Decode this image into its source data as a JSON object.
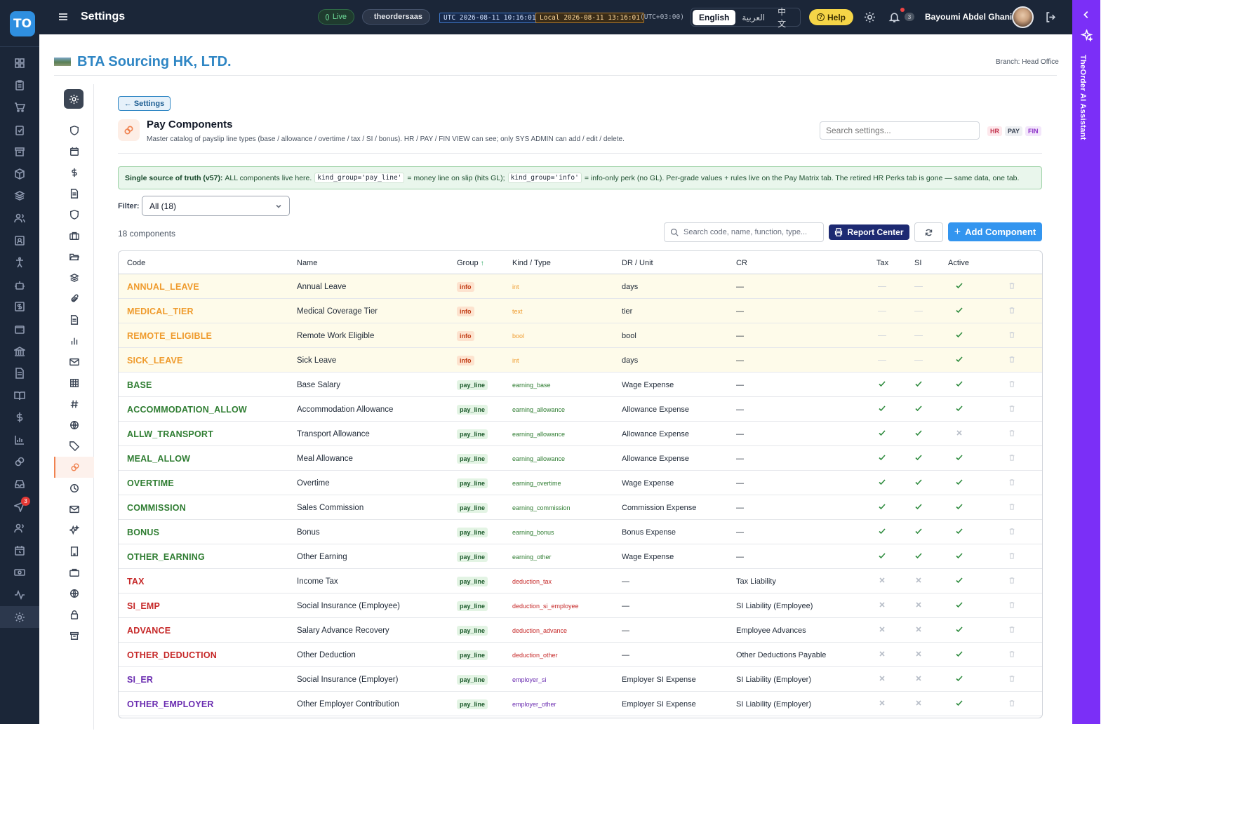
{
  "app": {
    "logo": "TO",
    "title": "Settings"
  },
  "topbar": {
    "live": "Live",
    "tenant": "theordersaas",
    "utc_clock": "UTC 2026-08-11 10:16:01",
    "local_clock": "Local 2026-08-11 13:16:01",
    "tz_offset": "(UTC+03:00)",
    "languages": [
      "English",
      "العربية",
      "中文"
    ],
    "active_language": "English",
    "help": "Help",
    "notification_count": "3",
    "user": "Bayoumi Abdel Ghani"
  },
  "rail": {
    "send_badge": "3"
  },
  "assistant": {
    "label": "TheOrder AI Assistant"
  },
  "company": {
    "name": "BTA Sourcing HK, LTD.",
    "branch": "Branch: Head Office"
  },
  "page": {
    "back": "← Settings",
    "title": "Pay Components",
    "description": "Master catalog of payslip line types (base / allowance / overtime / tax / SI / bonus). HR / PAY / FIN VIEW can see; only SYS ADMIN can add / edit / delete.",
    "search_placeholder": "Search settings...",
    "roles": [
      "HR",
      "PAY",
      "FIN"
    ]
  },
  "notice": {
    "lead": "Single source of truth (v57):",
    "t1": "ALL components live here.",
    "code1": "kind_group='pay_line'",
    "t2": "= money line on slip (hits GL);",
    "code2": "kind_group='info'",
    "t3": "= info-only perk (no GL). Per-grade values + rules live on the Pay Matrix tab. The retired HR Perks tab is gone — same data, one tab."
  },
  "filter": {
    "label": "Filter:",
    "value": "All (18)"
  },
  "toolbar": {
    "count": "18 components",
    "search_placeholder": "Search code, name, function, type...",
    "report": "Report Center",
    "add": "Add Component"
  },
  "colors": {
    "info": "#ef9b2d",
    "earning": "#2f7d32",
    "deduction": "#c62828",
    "employer": "#6a2cb0"
  },
  "table": {
    "columns": {
      "code": "Code",
      "name": "Name",
      "group": "Group",
      "kind": "Kind / Type",
      "dr": "DR / Unit",
      "cr": "CR",
      "tax": "Tax",
      "si": "SI",
      "active": "Active"
    },
    "rows": [
      {
        "code": "ANNUAL_LEAVE",
        "name": "Annual Leave",
        "group": "info",
        "kind": "int",
        "dr": "days",
        "cr": "—",
        "tax": null,
        "si": null,
        "active": true,
        "cat": "info"
      },
      {
        "code": "MEDICAL_TIER",
        "name": "Medical Coverage Tier",
        "group": "info",
        "kind": "text",
        "dr": "tier",
        "cr": "—",
        "tax": null,
        "si": null,
        "active": true,
        "cat": "info"
      },
      {
        "code": "REMOTE_ELIGIBLE",
        "name": "Remote Work Eligible",
        "group": "info",
        "kind": "bool",
        "dr": "bool",
        "cr": "—",
        "tax": null,
        "si": null,
        "active": true,
        "cat": "info"
      },
      {
        "code": "SICK_LEAVE",
        "name": "Sick Leave",
        "group": "info",
        "kind": "int",
        "dr": "days",
        "cr": "—",
        "tax": null,
        "si": null,
        "active": true,
        "cat": "info"
      },
      {
        "code": "BASE",
        "name": "Base Salary",
        "group": "pay_line",
        "kind": "earning_base",
        "dr": "Wage Expense",
        "cr": "—",
        "tax": true,
        "si": true,
        "active": true,
        "cat": "earning"
      },
      {
        "code": "ACCOMMODATION_ALLOW",
        "name": "Accommodation Allowance",
        "group": "pay_line",
        "kind": "earning_allowance",
        "dr": "Allowance Expense",
        "cr": "—",
        "tax": true,
        "si": true,
        "active": true,
        "cat": "earning"
      },
      {
        "code": "ALLW_TRANSPORT",
        "name": "Transport Allowance",
        "group": "pay_line",
        "kind": "earning_allowance",
        "dr": "Allowance Expense",
        "cr": "—",
        "tax": true,
        "si": true,
        "active": false,
        "cat": "earning"
      },
      {
        "code": "MEAL_ALLOW",
        "name": "Meal Allowance",
        "group": "pay_line",
        "kind": "earning_allowance",
        "dr": "Allowance Expense",
        "cr": "—",
        "tax": true,
        "si": true,
        "active": true,
        "cat": "earning"
      },
      {
        "code": "OVERTIME",
        "name": "Overtime",
        "group": "pay_line",
        "kind": "earning_overtime",
        "dr": "Wage Expense",
        "cr": "—",
        "tax": true,
        "si": true,
        "active": true,
        "cat": "earning"
      },
      {
        "code": "COMMISSION",
        "name": "Sales Commission",
        "group": "pay_line",
        "kind": "earning_commission",
        "dr": "Commission Expense",
        "cr": "—",
        "tax": true,
        "si": true,
        "active": true,
        "cat": "earning"
      },
      {
        "code": "BONUS",
        "name": "Bonus",
        "group": "pay_line",
        "kind": "earning_bonus",
        "dr": "Bonus Expense",
        "cr": "—",
        "tax": true,
        "si": true,
        "active": true,
        "cat": "earning"
      },
      {
        "code": "OTHER_EARNING",
        "name": "Other Earning",
        "group": "pay_line",
        "kind": "earning_other",
        "dr": "Wage Expense",
        "cr": "—",
        "tax": true,
        "si": true,
        "active": true,
        "cat": "earning"
      },
      {
        "code": "TAX",
        "name": "Income Tax",
        "group": "pay_line",
        "kind": "deduction_tax",
        "dr": "—",
        "cr": "Tax Liability",
        "tax": false,
        "si": false,
        "active": true,
        "cat": "deduction"
      },
      {
        "code": "SI_EMP",
        "name": "Social Insurance (Employee)",
        "group": "pay_line",
        "kind": "deduction_si_employee",
        "dr": "—",
        "cr": "SI Liability (Employee)",
        "tax": false,
        "si": false,
        "active": true,
        "cat": "deduction"
      },
      {
        "code": "ADVANCE",
        "name": "Salary Advance Recovery",
        "group": "pay_line",
        "kind": "deduction_advance",
        "dr": "—",
        "cr": "Employee Advances",
        "tax": false,
        "si": false,
        "active": true,
        "cat": "deduction"
      },
      {
        "code": "OTHER_DEDUCTION",
        "name": "Other Deduction",
        "group": "pay_line",
        "kind": "deduction_other",
        "dr": "—",
        "cr": "Other Deductions Payable",
        "tax": false,
        "si": false,
        "active": true,
        "cat": "deduction"
      },
      {
        "code": "SI_ER",
        "name": "Social Insurance (Employer)",
        "group": "pay_line",
        "kind": "employer_si",
        "dr": "Employer SI Expense",
        "cr": "SI Liability (Employer)",
        "tax": false,
        "si": false,
        "active": true,
        "cat": "employer"
      },
      {
        "code": "OTHER_EMPLOYER",
        "name": "Other Employer Contribution",
        "group": "pay_line",
        "kind": "employer_other",
        "dr": "Employer SI Expense",
        "cr": "SI Liability (Employer)",
        "tax": false,
        "si": false,
        "active": true,
        "cat": "employer"
      }
    ]
  }
}
